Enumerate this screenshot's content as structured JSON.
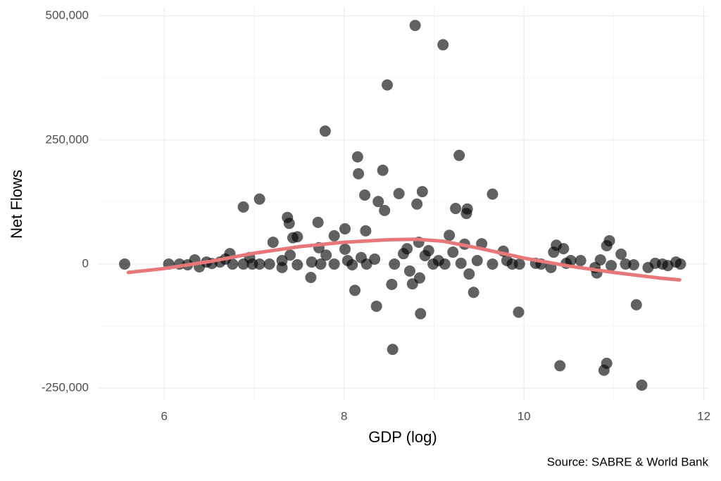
{
  "chart_data": {
    "type": "scatter",
    "xlabel": "GDP (log)",
    "ylabel": "Net Flows",
    "source": "Source: SABRE & World Bank",
    "color": "#000000",
    "xlim": [
      5.27,
      12.05
    ],
    "ylim": [
      -274000,
      518000
    ],
    "xticks": [
      6,
      8,
      10,
      12
    ],
    "yticks": [
      {
        "value": -250000,
        "label": "-250,000"
      },
      0,
      {
        "value": 250000,
        "label": "250,000"
      },
      {
        "value": 500000,
        "label": "500,000"
      }
    ],
    "minor_xticks": [
      7,
      9,
      11
    ],
    "minor_yticks": [
      -125000,
      125000,
      375000
    ],
    "grid": true,
    "x": [
      5.56,
      6.05,
      6.17,
      6.26,
      6.34,
      6.39,
      6.47,
      6.53,
      6.62,
      6.68,
      6.73,
      6.76,
      6.88,
      6.88,
      6.95,
      6.98,
      7.06,
      7.06,
      7.17,
      7.21,
      7.31,
      7.31,
      7.37,
      7.39,
      7.4,
      7.43,
      7.48,
      7.48,
      7.63,
      7.64,
      7.71,
      7.72,
      7.74,
      7.79,
      7.8,
      7.89,
      7.89,
      8.01,
      8.01,
      8.04,
      8.09,
      8.12,
      8.15,
      8.16,
      8.19,
      8.23,
      8.24,
      8.25,
      8.34,
      8.36,
      8.38,
      8.43,
      8.45,
      8.48,
      8.53,
      8.54,
      8.56,
      8.61,
      8.66,
      8.7,
      8.73,
      8.76,
      8.79,
      8.81,
      8.83,
      8.84,
      8.85,
      8.87,
      8.9,
      8.94,
      8.99,
      9.05,
      9.1,
      9.12,
      9.17,
      9.21,
      9.24,
      9.28,
      9.3,
      9.34,
      9.36,
      9.37,
      9.39,
      9.44,
      9.48,
      9.53,
      9.65,
      9.65,
      9.77,
      9.81,
      9.87,
      9.94,
      9.95,
      10.13,
      10.19,
      10.3,
      10.33,
      10.36,
      10.4,
      10.44,
      10.47,
      10.52,
      10.63,
      10.79,
      10.81,
      10.85,
      10.89,
      10.92,
      10.92,
      10.95,
      10.97,
      11.08,
      11.13,
      11.22,
      11.25,
      11.31,
      11.38,
      11.46,
      11.54,
      11.6,
      11.69,
      11.74
    ],
    "values": [
      0,
      0,
      0,
      -1500,
      8500,
      -5700,
      4000,
      1000,
      4000,
      10000,
      21000,
      0,
      115000,
      0,
      13000,
      0,
      0,
      131000,
      0,
      44000,
      7000,
      -7000,
      94000,
      82000,
      18000,
      53000,
      55000,
      -1500,
      -27000,
      4000,
      84000,
      33000,
      0,
      268000,
      18000,
      57000,
      0,
      71000,
      30000,
      7000,
      -1500,
      -53000,
      216000,
      182000,
      13000,
      139000,
      67000,
      0,
      10000,
      -85000,
      126000,
      189000,
      108000,
      361000,
      -41000,
      -172000,
      0,
      142000,
      21000,
      31000,
      -14000,
      -40000,
      481000,
      121000,
      44000,
      -28000,
      -100000,
      146000,
      17000,
      27000,
      0,
      7000,
      442000,
      0,
      58000,
      24000,
      112000,
      219000,
      1500,
      40000,
      102000,
      111000,
      -20000,
      -57000,
      7000,
      41000,
      141000,
      0,
      26000,
      7000,
      0,
      -97000,
      0,
      1500,
      0,
      -7000,
      24000,
      38000,
      -205000,
      31000,
      1500,
      7000,
      7000,
      -7000,
      -18000,
      8500,
      -214000,
      -200000,
      37000,
      47000,
      -3000,
      20000,
      0,
      -1500,
      -82000,
      -244000,
      -7000,
      1500,
      0,
      -3000,
      4000,
      0
    ],
    "trend": {
      "type": "line",
      "color": "#e8777a",
      "x": [
        5.6,
        6,
        6.5,
        7,
        7.5,
        8,
        8.5,
        8.8,
        9.1,
        9.5,
        10,
        10.5,
        11,
        11.5,
        11.73
      ],
      "values": [
        -17000,
        -9000,
        5000,
        22000,
        35000,
        44000,
        49000,
        50000,
        46000,
        32000,
        12000,
        -4000,
        -17000,
        -28000,
        -32000
      ]
    }
  }
}
